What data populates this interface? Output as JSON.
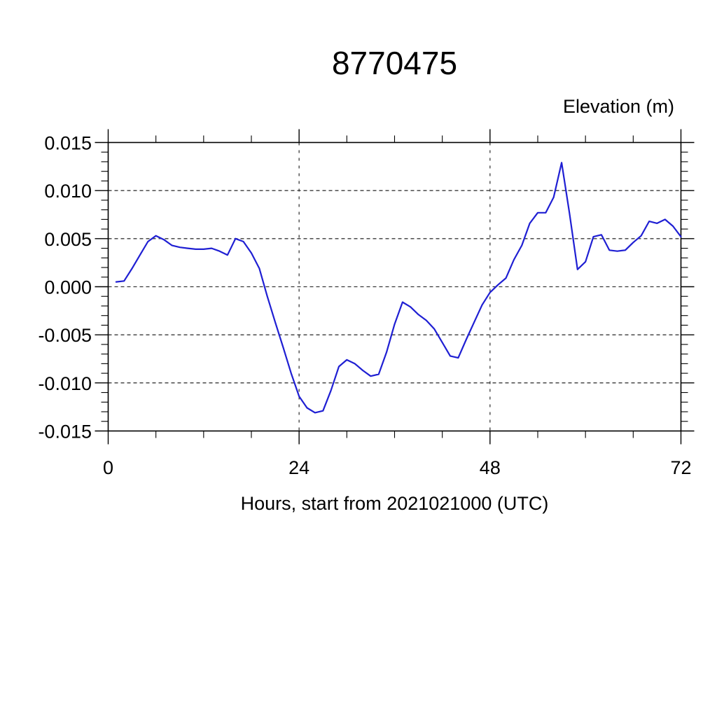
{
  "chart": {
    "title": "8770475",
    "y_axis_title": "Elevation (m)",
    "x_axis_title": "Hours, start from 2021021000 (UTC)"
  },
  "chart_data": {
    "type": "line",
    "title": "8770475",
    "xlabel": "Hours, start from 2021021000 (UTC)",
    "ylabel": "Elevation (m)",
    "xlim": [
      0,
      72
    ],
    "ylim": [
      -0.015,
      0.015
    ],
    "grid": true,
    "grid_style": "dashed",
    "legend_position": "none",
    "x_major_ticks": [
      0,
      24,
      48,
      72
    ],
    "x_tick_labels": [
      "0",
      "24",
      "48",
      "72"
    ],
    "x_minor_tick_interval": 6,
    "y_major_ticks": [
      0.015,
      0.01,
      0.005,
      0.0,
      -0.005,
      -0.01,
      -0.015
    ],
    "y_tick_labels": [
      "0.015",
      "0.010",
      "0.005",
      "0.000",
      "-0.005",
      "-0.010",
      "-0.015"
    ],
    "y_minor_tick_interval": 0.001,
    "line_color": "#1f1fd3",
    "series": [
      {
        "name": "elevation",
        "x": [
          1,
          2,
          3,
          4,
          5,
          6,
          7,
          8,
          9,
          10,
          11,
          12,
          13,
          14,
          15,
          16,
          17,
          18,
          19,
          20,
          21,
          22,
          23,
          24,
          25,
          26,
          27,
          28,
          29,
          30,
          31,
          32,
          33,
          34,
          35,
          36,
          37,
          38,
          39,
          40,
          41,
          42,
          43,
          44,
          45,
          46,
          47,
          48,
          49,
          50,
          51,
          52,
          53,
          54,
          55,
          56,
          57,
          58,
          59,
          60,
          61,
          62,
          63,
          64,
          65,
          66,
          67,
          68,
          69,
          70,
          71,
          72
        ],
        "y": [
          0.0005,
          0.0006,
          0.0019,
          0.0033,
          0.0047,
          0.0053,
          0.0049,
          0.0043,
          0.0041,
          0.004,
          0.0039,
          0.0039,
          0.004,
          0.0037,
          0.0033,
          0.005,
          0.0047,
          0.0035,
          0.0019,
          -0.001,
          -0.0037,
          -0.0063,
          -0.009,
          -0.0114,
          -0.0126,
          -0.0131,
          -0.0129,
          -0.0108,
          -0.0083,
          -0.0076,
          -0.008,
          -0.0087,
          -0.0093,
          -0.0091,
          -0.0068,
          -0.0039,
          -0.0016,
          -0.0021,
          -0.0029,
          -0.0035,
          -0.0044,
          -0.0058,
          -0.0072,
          -0.0074,
          -0.0055,
          -0.0037,
          -0.0019,
          -0.0006,
          0.0002,
          0.0009,
          0.0028,
          0.0043,
          0.0066,
          0.0077,
          0.0077,
          0.0093,
          0.0129,
          0.0076,
          0.0018,
          0.0026,
          0.0052,
          0.0054,
          0.0038,
          0.0037,
          0.0038,
          0.0046,
          0.0053,
          0.0068,
          0.0066,
          0.007,
          0.0063,
          0.0052
        ]
      }
    ]
  }
}
